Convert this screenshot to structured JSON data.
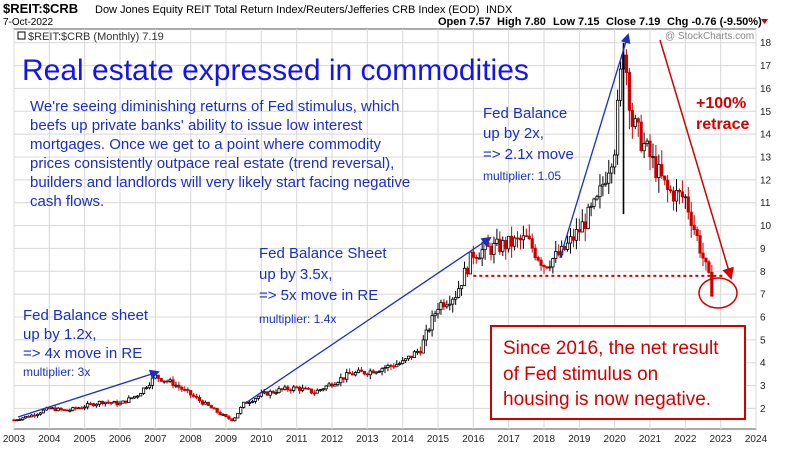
{
  "header": {
    "symbol": "$REIT:$CRB",
    "description": "Dow Jones Equity REIT Total Return Index/Reuters/Jefferies CRB Index (EOD)",
    "index_tag": "INDX",
    "date": "7-Oct-2022",
    "ohlc": {
      "open": "Open 7.57",
      "high": "High 7.80",
      "low": "Low 7.15",
      "close": "Close 7.19",
      "chg": "Chg -0.76 (-9.50%)"
    },
    "legend": "$REIT:$CRB (Monthly) 7.19",
    "watermark": "@ StockCharts.com"
  },
  "annotations": {
    "title": "Real estate expressed in commodities",
    "paragraph": [
      "We're seeing diminishing returns of Fed stimulus, which",
      "beefs up private banks' ability to issue low interest",
      "mortgages. Once we get to a point where commodity",
      "prices consistently outpace real estate (trend reversal),",
      "builders and landlords will very likely start facing negative",
      "cash flows."
    ],
    "note1": [
      "Fed Balance sheet",
      "up by 1.2x,",
      "=> 4x move in RE"
    ],
    "note1_mult": "multiplier: 3x",
    "note2": [
      "Fed Balance Sheet",
      "up by 3.5x,",
      "=> 5x move in RE"
    ],
    "note2_mult": "multiplier: 1.4x",
    "note3": [
      "Fed Balance",
      "up by 2x,",
      "=> 2.1x move"
    ],
    "note3_mult": "multiplier: 1.05",
    "retrace": [
      "+100%",
      "retrace"
    ],
    "box": [
      "Since 2016, the net result",
      "of Fed stimulus on",
      "housing is now negative."
    ]
  },
  "colors": {
    "up": "#000000",
    "down": "#cc0000",
    "arrow_blue": "#1a2fbf",
    "red": "#d40000",
    "grid": "#d8d8d8"
  },
  "chart_data": {
    "type": "candlestick",
    "title": "$REIT:$CRB",
    "xlabel": "",
    "ylabel": "",
    "x_ticks": [
      "2003",
      "2004",
      "2005",
      "2006",
      "2007",
      "2008",
      "2009",
      "2010",
      "2011",
      "2012",
      "2013",
      "2014",
      "2015",
      "2016",
      "2017",
      "2018",
      "2019",
      "2020",
      "2021",
      "2022",
      "2023",
      "2024"
    ],
    "y_ticks": [
      2,
      3,
      4,
      5,
      6,
      7,
      8,
      9,
      10,
      11,
      12,
      13,
      14,
      15,
      16,
      17,
      18
    ],
    "xlim": [
      2003.0,
      2024.0
    ],
    "ylim": [
      1.1,
      18.6
    ],
    "grid": true,
    "reference_line": {
      "value": 7.8,
      "from": 2016.0,
      "to": 2023.1
    },
    "series": [
      {
        "name": "$REIT:$CRB (Monthly)",
        "points": [
          [
            2003.0,
            1.5
          ],
          [
            2003.5,
            1.7
          ],
          [
            2004.0,
            2.0
          ],
          [
            2004.5,
            1.9
          ],
          [
            2005.0,
            2.1
          ],
          [
            2005.5,
            2.3
          ],
          [
            2006.0,
            2.2
          ],
          [
            2006.5,
            2.6
          ],
          [
            2007.0,
            3.4
          ],
          [
            2007.5,
            3.1
          ],
          [
            2008.0,
            2.6
          ],
          [
            2008.5,
            2.1
          ],
          [
            2009.0,
            1.6
          ],
          [
            2009.2,
            1.5
          ],
          [
            2009.5,
            2.2
          ],
          [
            2010.0,
            2.6
          ],
          [
            2010.5,
            2.8
          ],
          [
            2011.0,
            2.9
          ],
          [
            2011.5,
            2.7
          ],
          [
            2012.0,
            3.1
          ],
          [
            2012.5,
            3.5
          ],
          [
            2013.0,
            3.6
          ],
          [
            2013.5,
            3.8
          ],
          [
            2014.0,
            4.0
          ],
          [
            2014.5,
            4.6
          ],
          [
            2015.0,
            6.5
          ],
          [
            2015.5,
            7.0
          ],
          [
            2016.0,
            8.8
          ],
          [
            2016.5,
            9.0
          ],
          [
            2017.0,
            9.2
          ],
          [
            2017.5,
            9.4
          ],
          [
            2018.0,
            8.3
          ],
          [
            2018.5,
            8.8
          ],
          [
            2019.0,
            9.8
          ],
          [
            2019.5,
            11.0
          ],
          [
            2020.0,
            13.5
          ],
          [
            2020.25,
            18.0
          ],
          [
            2020.5,
            14.5
          ],
          [
            2021.0,
            13.0
          ],
          [
            2021.5,
            11.5
          ],
          [
            2022.0,
            11.2
          ],
          [
            2022.5,
            8.6
          ],
          [
            2022.75,
            7.19
          ]
        ]
      }
    ]
  }
}
